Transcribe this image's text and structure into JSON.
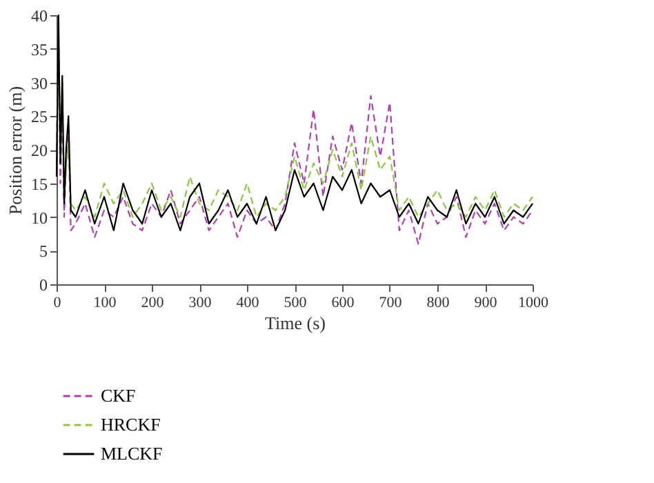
{
  "chart_data": {
    "type": "line",
    "xlabel": "Time (s)",
    "ylabel": "Position error (m)",
    "x": [
      0,
      4,
      8,
      12,
      16,
      20,
      25,
      30,
      40,
      60,
      80,
      100,
      120,
      140,
      160,
      180,
      200,
      220,
      240,
      260,
      280,
      300,
      320,
      340,
      360,
      380,
      400,
      420,
      440,
      460,
      480,
      500,
      520,
      540,
      560,
      580,
      600,
      620,
      640,
      660,
      680,
      700,
      720,
      740,
      760,
      780,
      800,
      820,
      840,
      860,
      880,
      900,
      920,
      940,
      960,
      980,
      1000
    ],
    "series": [
      {
        "name": "CKF",
        "color": "#b040b0",
        "line_style": "dashed",
        "values": [
          20,
          35,
          15,
          28,
          10,
          18,
          22,
          8,
          9,
          12,
          7,
          11,
          10,
          13,
          9,
          8,
          12,
          10,
          14,
          9,
          11,
          13,
          8,
          10,
          12,
          7,
          11,
          9,
          10,
          8,
          12,
          21,
          15,
          26,
          13,
          22,
          17,
          24,
          15,
          28,
          19,
          27,
          8,
          11,
          6,
          12,
          9,
          10,
          13,
          7,
          11,
          9,
          12,
          8,
          10,
          9,
          11
        ]
      },
      {
        "name": "HRCKF",
        "color": "#8cc63f",
        "line_style": "dashed",
        "values": [
          18,
          38,
          20,
          30,
          13,
          17,
          21,
          12,
          11,
          13,
          10,
          15,
          12,
          14,
          10,
          12,
          15,
          11,
          13,
          10,
          16,
          12,
          11,
          14,
          13,
          11,
          15,
          10,
          12,
          11,
          13,
          19,
          14,
          18,
          15,
          20,
          16,
          21,
          14,
          22,
          17,
          19,
          11,
          13,
          10,
          12,
          14,
          11,
          12,
          10,
          13,
          11,
          14,
          10,
          12,
          11,
          13
        ]
      },
      {
        "name": "MLCKF",
        "color": "#000000",
        "line_style": "solid",
        "values": [
          16,
          40,
          18,
          31,
          12,
          20,
          25,
          11,
          10,
          14,
          9,
          13,
          8,
          15,
          11,
          9,
          14,
          10,
          12,
          8,
          13,
          15,
          9,
          11,
          14,
          10,
          12,
          9,
          13,
          8,
          11,
          17,
          13,
          15,
          11,
          16,
          14,
          17,
          12,
          15,
          13,
          14,
          10,
          12,
          9,
          13,
          11,
          10,
          14,
          9,
          12,
          10,
          13,
          9,
          11,
          10,
          12
        ]
      }
    ],
    "xlim": [
      0,
      1000
    ],
    "xticks": [
      0,
      100,
      200,
      300,
      400,
      500,
      600,
      700,
      800,
      900,
      1000
    ],
    "ylim": [
      0,
      40
    ],
    "yticks": [
      0,
      5,
      10,
      15,
      20,
      25,
      30,
      35,
      40
    ],
    "grid": false,
    "legend": "bottom left"
  }
}
